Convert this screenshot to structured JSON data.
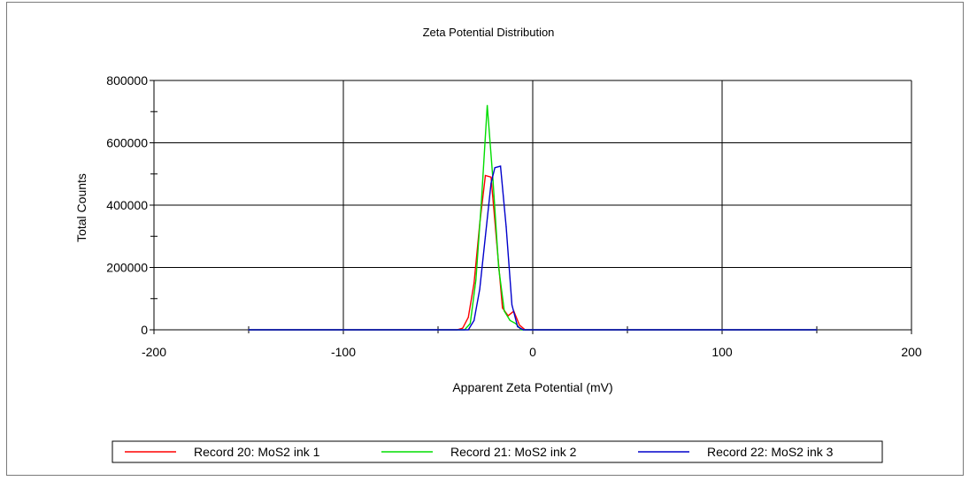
{
  "chart_data": {
    "type": "line",
    "title": "Zeta Potential Distribution",
    "xlabel": "Apparent Zeta Potential (mV)",
    "ylabel": "Total Counts",
    "xlim": [
      -200,
      200
    ],
    "ylim": [
      0,
      800000
    ],
    "x_ticks": [
      -200,
      -100,
      0,
      100,
      200
    ],
    "x_tick_labels": [
      "-200",
      "-100",
      "0",
      "100",
      "200"
    ],
    "y_ticks": [
      0,
      200000,
      400000,
      600000,
      800000
    ],
    "y_tick_labels": [
      "0",
      "200000",
      "400000",
      "600000",
      "800000"
    ],
    "grid": true,
    "legend_position": "bottom",
    "series": [
      {
        "name": "Record 20: MoS2 ink 1",
        "color": "#ff0000",
        "points": [
          [
            -150,
            0
          ],
          [
            -50,
            0
          ],
          [
            -40,
            0
          ],
          [
            -37,
            5000
          ],
          [
            -34,
            40000
          ],
          [
            -31,
            150000
          ],
          [
            -28,
            340000
          ],
          [
            -25,
            495000
          ],
          [
            -22,
            490000
          ],
          [
            -19,
            280000
          ],
          [
            -16,
            70000
          ],
          [
            -13,
            45000
          ],
          [
            -10,
            60000
          ],
          [
            -7,
            15000
          ],
          [
            -4,
            0
          ],
          [
            0,
            0
          ],
          [
            150,
            0
          ]
        ]
      },
      {
        "name": "Record 21: MoS2 ink 2",
        "color": "#00dd00",
        "points": [
          [
            -150,
            0
          ],
          [
            -50,
            0
          ],
          [
            -36,
            0
          ],
          [
            -33,
            20000
          ],
          [
            -30,
            160000
          ],
          [
            -27,
            420000
          ],
          [
            -24,
            720000
          ],
          [
            -21,
            480000
          ],
          [
            -18,
            200000
          ],
          [
            -15,
            60000
          ],
          [
            -12,
            30000
          ],
          [
            -9,
            20000
          ],
          [
            -6,
            0
          ],
          [
            0,
            0
          ],
          [
            150,
            0
          ]
        ]
      },
      {
        "name": "Record 22: MoS2 ink 3",
        "color": "#0000cc",
        "points": [
          [
            -150,
            0
          ],
          [
            -50,
            0
          ],
          [
            -34,
            0
          ],
          [
            -31,
            30000
          ],
          [
            -28,
            130000
          ],
          [
            -25,
            300000
          ],
          [
            -22,
            470000
          ],
          [
            -20,
            520000
          ],
          [
            -17,
            525000
          ],
          [
            -14,
            330000
          ],
          [
            -11,
            80000
          ],
          [
            -8,
            10000
          ],
          [
            -5,
            0
          ],
          [
            0,
            0
          ],
          [
            150,
            0
          ]
        ]
      }
    ]
  }
}
